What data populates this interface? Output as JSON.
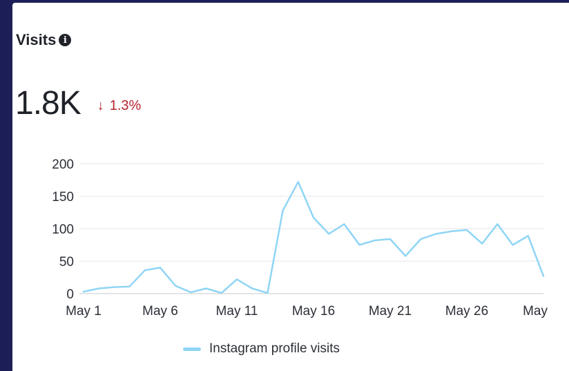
{
  "card": {
    "title": "Visits",
    "info_glyph": "i",
    "metric_value": "1.8K",
    "delta_arrow": "↓",
    "delta_text": "1.3%",
    "delta_color": "#b3242d"
  },
  "chart_data": {
    "type": "line",
    "title": "",
    "xlabel": "",
    "ylabel": "",
    "ylim": [
      0,
      200
    ],
    "yticks": [
      0,
      50,
      100,
      150,
      200
    ],
    "x_tick_labels": [
      "May 1",
      "May 6",
      "May 11",
      "May 16",
      "May 21",
      "May 26",
      "May"
    ],
    "x_tick_days": [
      1,
      6,
      11,
      16,
      21,
      26,
      31
    ],
    "grid": true,
    "legend_position": "bottom",
    "series": [
      {
        "name": "Instagram profile visits",
        "color": "#8fd5f5",
        "x": [
          1,
          2,
          3,
          4,
          5,
          6,
          7,
          8,
          9,
          10,
          11,
          12,
          13,
          14,
          15,
          16,
          17,
          18,
          19,
          20,
          21,
          22,
          23,
          24,
          25,
          26,
          27,
          28,
          29,
          30,
          31
        ],
        "values": [
          3,
          8,
          10,
          11,
          36,
          40,
          12,
          2,
          8,
          1,
          22,
          8,
          1,
          128,
          172,
          117,
          92,
          107,
          75,
          82,
          84,
          58,
          84,
          92,
          96,
          98,
          77,
          107,
          75,
          89,
          27
        ]
      }
    ]
  }
}
